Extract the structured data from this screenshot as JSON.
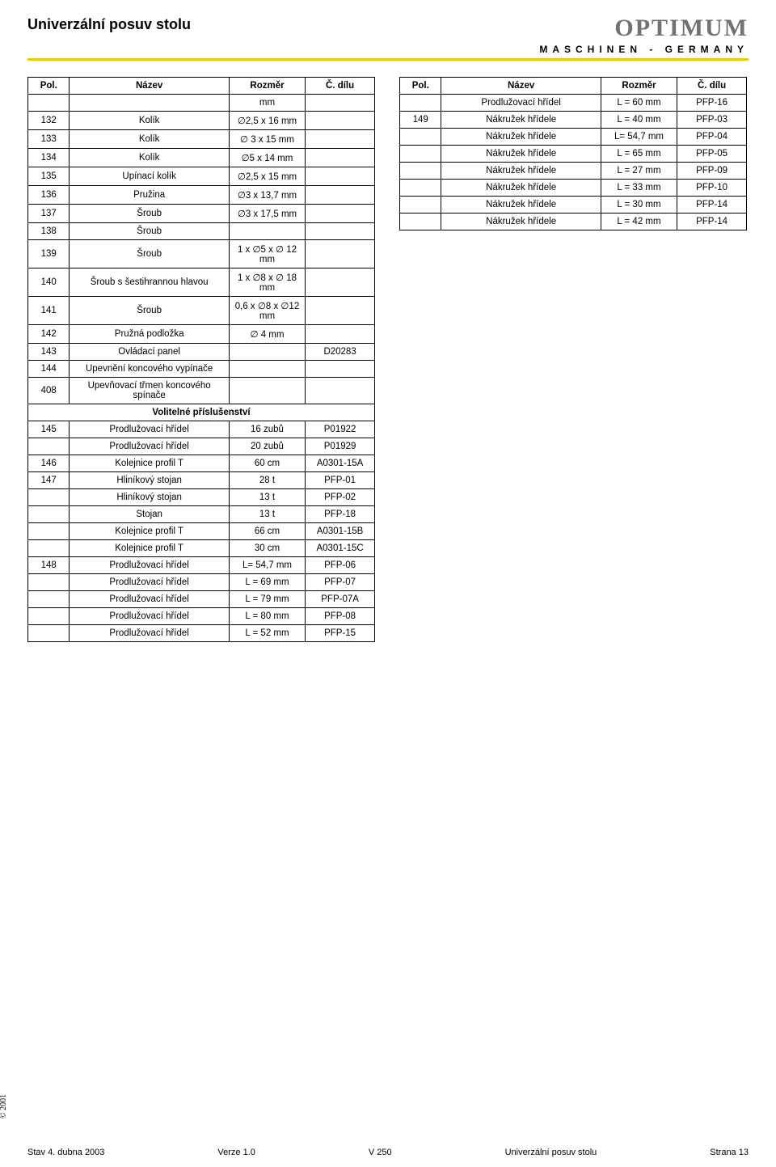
{
  "header": {
    "title": "Univerzální posuv stolu",
    "brand": "OPTIMUM",
    "subbrand": "MASCHINEN - GERMANY"
  },
  "colheads": {
    "pol": "Pol.",
    "nazev": "Název",
    "rozmer": "Rozměr",
    "dilu": "Č. dílu"
  },
  "left_rows": [
    {
      "pol": "",
      "nazev": "",
      "rozmer": "mm",
      "dilu": ""
    },
    {
      "pol": "132",
      "nazev": "Kolík",
      "rozmer": "∅2,5 x 16 mm",
      "dilu": ""
    },
    {
      "pol": "133",
      "nazev": "Kolík",
      "rozmer": "∅ 3 x 15 mm",
      "dilu": ""
    },
    {
      "pol": "134",
      "nazev": "Kolík",
      "rozmer": "∅5 x 14 mm",
      "dilu": ""
    },
    {
      "pol": "135",
      "nazev": "Upínací kolík",
      "rozmer": "∅2,5 x 15 mm",
      "dilu": ""
    },
    {
      "pol": "136",
      "nazev": "Pružina",
      "rozmer": "∅3 x 13,7 mm",
      "dilu": ""
    },
    {
      "pol": "137",
      "nazev": "Šroub",
      "rozmer": "∅3 x 17,5 mm",
      "dilu": ""
    },
    {
      "pol": "138",
      "nazev": "Šroub",
      "rozmer": "",
      "dilu": ""
    },
    {
      "pol": "139",
      "nazev": "Šroub",
      "rozmer": "1 x ∅5 x ∅ 12 mm",
      "dilu": ""
    },
    {
      "pol": "140",
      "nazev": "Šroub s šestihrannou hlavou",
      "rozmer": "1 x ∅8 x ∅ 18 mm",
      "dilu": ""
    },
    {
      "pol": "141",
      "nazev": "Šroub",
      "rozmer": "0,6 x ∅8 x ∅12 mm",
      "dilu": ""
    },
    {
      "pol": "142",
      "nazev": "Pružná podložka",
      "rozmer": "∅ 4 mm",
      "dilu": ""
    },
    {
      "pol": "143",
      "nazev": "Ovládací panel",
      "rozmer": "",
      "dilu": "D20283"
    },
    {
      "pol": "144",
      "nazev": "Upevnění koncového vypínače",
      "rozmer": "",
      "dilu": ""
    },
    {
      "pol": "408",
      "nazev": "Upevňovací třmen koncového spínače",
      "rozmer": "",
      "dilu": ""
    }
  ],
  "section_title": "Volitelné příslušenství",
  "left_rows2": [
    {
      "pol": "145",
      "nazev": "Prodlužovací hřídel",
      "rozmer": "16 zubů",
      "dilu": "P01922"
    },
    {
      "pol": "",
      "nazev": "Prodlužovací hřídel",
      "rozmer": "20 zubů",
      "dilu": "P01929"
    },
    {
      "pol": "146",
      "nazev": "Kolejnice profil T",
      "rozmer": "60 cm",
      "dilu": "A0301-15A"
    },
    {
      "pol": "147",
      "nazev": "Hliníkový stojan",
      "rozmer": "28 t",
      "dilu": "PFP-01"
    },
    {
      "pol": "",
      "nazev": "Hliníkový stojan",
      "rozmer": "13 t",
      "dilu": "PFP-02"
    },
    {
      "pol": "",
      "nazev": "Stojan",
      "rozmer": "13 t",
      "dilu": "PFP-18"
    },
    {
      "pol": "",
      "nazev": "Kolejnice profil T",
      "rozmer": "66 cm",
      "dilu": "A0301-15B"
    },
    {
      "pol": "",
      "nazev": "Kolejnice profil T",
      "rozmer": "30 cm",
      "dilu": "A0301-15C"
    },
    {
      "pol": "148",
      "nazev": "Prodlužovací hřídel",
      "rozmer": "L= 54,7 mm",
      "dilu": "PFP-06"
    },
    {
      "pol": "",
      "nazev": "Prodlužovací hřídel",
      "rozmer": "L = 69 mm",
      "dilu": "PFP-07"
    },
    {
      "pol": "",
      "nazev": "Prodlužovací hřídel",
      "rozmer": "L = 79 mm",
      "dilu": "PFP-07A"
    },
    {
      "pol": "",
      "nazev": "Prodlužovací hřídel",
      "rozmer": "L = 80 mm",
      "dilu": "PFP-08"
    },
    {
      "pol": "",
      "nazev": "Prodlužovací hřídel",
      "rozmer": "L = 52 mm",
      "dilu": "PFP-15"
    }
  ],
  "right_rows": [
    {
      "pol": "",
      "nazev": "Prodlužovací hřídel",
      "rozmer": "L = 60 mm",
      "dilu": "PFP-16"
    },
    {
      "pol": "149",
      "nazev": "Nákružek hřídele",
      "rozmer": "L = 40 mm",
      "dilu": "PFP-03"
    },
    {
      "pol": "",
      "nazev": "Nákružek hřídele",
      "rozmer": "L= 54,7 mm",
      "dilu": "PFP-04"
    },
    {
      "pol": "",
      "nazev": "Nákružek hřídele",
      "rozmer": "L = 65 mm",
      "dilu": "PFP-05"
    },
    {
      "pol": "",
      "nazev": "Nákružek hřídele",
      "rozmer": "L = 27 mm",
      "dilu": "PFP-09"
    },
    {
      "pol": "",
      "nazev": "Nákružek hřídele",
      "rozmer": "L = 33 mm",
      "dilu": "PFP-10"
    },
    {
      "pol": "",
      "nazev": "Nákružek hřídele",
      "rozmer": "L = 30 mm",
      "dilu": "PFP-14"
    },
    {
      "pol": "",
      "nazev": "Nákružek hřídele",
      "rozmer": "L = 42 mm",
      "dilu": "PFP-14"
    }
  ],
  "footer": {
    "date": "Stav 4. dubna 2003",
    "version": "Verze 1.0",
    "model": "V 250",
    "doc": "Univerzální posuv stolu",
    "page": "Strana 13"
  },
  "copyright": "© 2001",
  "col_widths": {
    "pol": "12%",
    "nazev": "46%",
    "rozmer": "22%",
    "dilu": "20%"
  }
}
